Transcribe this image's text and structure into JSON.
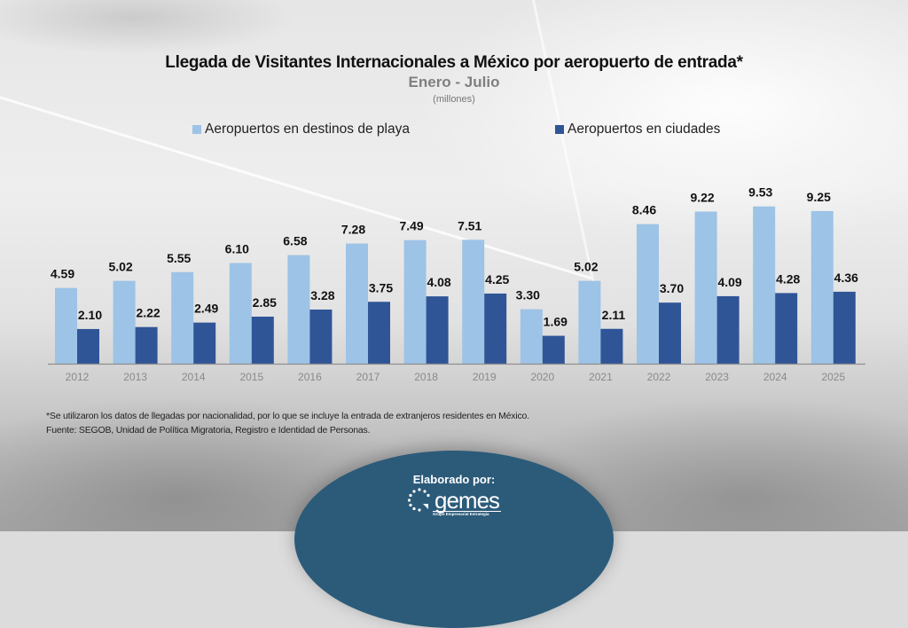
{
  "header": {
    "title": "Llegada de Visitantes Internacionales a México por aeropuerto de entrada*",
    "subtitle": "Enero - Julio",
    "unit": "(millones)"
  },
  "legend": [
    {
      "label": "Aeropuertos en destinos de playa",
      "color": "#9dc3e6"
    },
    {
      "label": "Aeropuertos en ciudades",
      "color": "#2f5597"
    }
  ],
  "chart_data": {
    "type": "bar",
    "title": "Llegada de Visitantes Internacionales a México por aeropuerto de entrada*",
    "subtitle": "Enero - Julio",
    "ylabel": "(millones)",
    "xlabel": "",
    "categories": [
      "2012",
      "2013",
      "2014",
      "2015",
      "2016",
      "2017",
      "2018",
      "2019",
      "2020",
      "2021",
      "2022",
      "2023",
      "2024",
      "2025"
    ],
    "series": [
      {
        "name": "Aeropuertos en destinos de playa",
        "color": "#9dc3e6",
        "values": [
          4.59,
          5.02,
          5.55,
          6.1,
          6.58,
          7.28,
          7.49,
          7.51,
          3.3,
          5.02,
          8.46,
          9.22,
          9.53,
          9.25
        ],
        "labels": [
          "4.59",
          "5.02",
          "5.55",
          "6.10",
          "6.58",
          "7.28",
          "7.49",
          "7.51",
          "3.30",
          "5.02",
          "8.46",
          "9.22",
          "9.53",
          "9.25"
        ]
      },
      {
        "name": "Aeropuertos en ciudades",
        "color": "#2f5597",
        "values": [
          2.1,
          2.22,
          2.49,
          2.85,
          3.28,
          3.75,
          4.08,
          4.25,
          1.69,
          2.11,
          3.7,
          4.09,
          4.28,
          4.36
        ],
        "labels": [
          "2.10",
          "2.22",
          "2.49",
          "2.85",
          "3.28",
          "3.75",
          "4.08",
          "4.25",
          "1.69",
          "2.11",
          "3.70",
          "4.09",
          "4.28",
          "4.36"
        ]
      }
    ],
    "ylim": [
      0,
      10
    ],
    "grid": false,
    "legend_position": "top",
    "data_labels": true
  },
  "notes": {
    "footnote": "*Se utilizaron los datos de llegadas por nacionalidad, por lo que se incluye la entrada de extranjeros residentes en México.",
    "source": "Fuente: SEGOB, Unidad de Política Migratoria, Registro e Identidad de Personas."
  },
  "credit": {
    "label": "Elaborado por:",
    "logo_name": "gemes",
    "logo_tagline": "Grupo Empresarial Estrategia"
  }
}
